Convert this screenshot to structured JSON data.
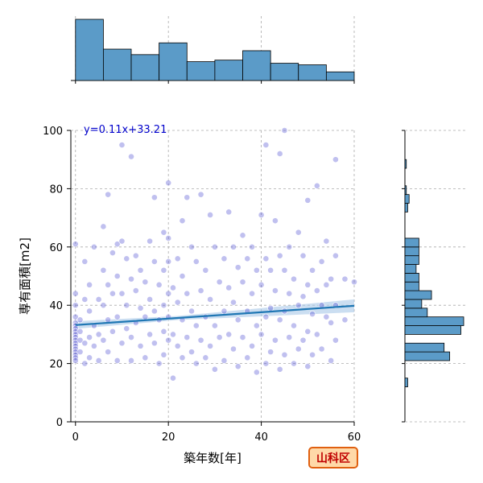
{
  "chart_data": {
    "type": "scatter",
    "title": "",
    "xlabel": "築年数[年]",
    "ylabel": "専有面積[m2]",
    "xlim": [
      -1,
      60
    ],
    "ylim": [
      0,
      100
    ],
    "x_ticks": [
      0,
      20,
      40,
      60
    ],
    "y_ticks": [
      0,
      20,
      40,
      60,
      80,
      100
    ],
    "grid": true,
    "equation": "y=0.11x+33.21",
    "regression": {
      "slope": 0.11,
      "intercept": 33.21
    },
    "region_label": "山科区",
    "colors": {
      "point": "#4a4ad0",
      "line": "#1f77b4",
      "band": "#a8c8e8",
      "bar": "#5b9bc8",
      "badge_fill": "#ffd9a8",
      "badge_border": "#e06010"
    },
    "points": [
      [
        0,
        34
      ],
      [
        0,
        33
      ],
      [
        0,
        32
      ],
      [
        0,
        31
      ],
      [
        0,
        30
      ],
      [
        0,
        29
      ],
      [
        0,
        28
      ],
      [
        0,
        27
      ],
      [
        0,
        26
      ],
      [
        0,
        25
      ],
      [
        0,
        24
      ],
      [
        0,
        23
      ],
      [
        0,
        22
      ],
      [
        0,
        21
      ],
      [
        0,
        44
      ],
      [
        0,
        61
      ],
      [
        0,
        36
      ],
      [
        0,
        40
      ],
      [
        1,
        31
      ],
      [
        1,
        28
      ],
      [
        1,
        24
      ],
      [
        1,
        35
      ],
      [
        2,
        55
      ],
      [
        2,
        42
      ],
      [
        2,
        27
      ],
      [
        2,
        20
      ],
      [
        3,
        47
      ],
      [
        3,
        38
      ],
      [
        3,
        29
      ],
      [
        3,
        22
      ],
      [
        4,
        60
      ],
      [
        4,
        33
      ],
      [
        4,
        26
      ],
      [
        5,
        42
      ],
      [
        5,
        30
      ],
      [
        5,
        21
      ],
      [
        6,
        67
      ],
      [
        6,
        52
      ],
      [
        6,
        40
      ],
      [
        6,
        28
      ],
      [
        7,
        78
      ],
      [
        7,
        47
      ],
      [
        7,
        35
      ],
      [
        7,
        24
      ],
      [
        8,
        58
      ],
      [
        8,
        44
      ],
      [
        8,
        31
      ],
      [
        9,
        61
      ],
      [
        9,
        50
      ],
      [
        9,
        36
      ],
      [
        9,
        21
      ],
      [
        10,
        95
      ],
      [
        10,
        62
      ],
      [
        10,
        44
      ],
      [
        10,
        27
      ],
      [
        11,
        56
      ],
      [
        11,
        40
      ],
      [
        11,
        32
      ],
      [
        12,
        91
      ],
      [
        12,
        49
      ],
      [
        12,
        29
      ],
      [
        12,
        21
      ],
      [
        13,
        57
      ],
      [
        13,
        45
      ],
      [
        13,
        34
      ],
      [
        14,
        52
      ],
      [
        14,
        39
      ],
      [
        14,
        26
      ],
      [
        15,
        48
      ],
      [
        15,
        36
      ],
      [
        15,
        22
      ],
      [
        16,
        62
      ],
      [
        16,
        42
      ],
      [
        16,
        30
      ],
      [
        17,
        77
      ],
      [
        17,
        55
      ],
      [
        17,
        38
      ],
      [
        17,
        27
      ],
      [
        18,
        47
      ],
      [
        18,
        35
      ],
      [
        18,
        20
      ],
      [
        19,
        65
      ],
      [
        19,
        52
      ],
      [
        19,
        40
      ],
      [
        19,
        31
      ],
      [
        19,
        23
      ],
      [
        20,
        82
      ],
      [
        20,
        63
      ],
      [
        20,
        55
      ],
      [
        20,
        44
      ],
      [
        20,
        36
      ],
      [
        20,
        28
      ],
      [
        21,
        46
      ],
      [
        21,
        30
      ],
      [
        21,
        15
      ],
      [
        22,
        56
      ],
      [
        22,
        41
      ],
      [
        22,
        26
      ],
      [
        23,
        69
      ],
      [
        23,
        50
      ],
      [
        23,
        35
      ],
      [
        23,
        22
      ],
      [
        24,
        77
      ],
      [
        24,
        44
      ],
      [
        24,
        29
      ],
      [
        25,
        60
      ],
      [
        25,
        38
      ],
      [
        25,
        24
      ],
      [
        26,
        55
      ],
      [
        26,
        33
      ],
      [
        26,
        20
      ],
      [
        27,
        78
      ],
      [
        27,
        45
      ],
      [
        27,
        28
      ],
      [
        28,
        52
      ],
      [
        28,
        36
      ],
      [
        28,
        22
      ],
      [
        29,
        71
      ],
      [
        29,
        42
      ],
      [
        29,
        26
      ],
      [
        30,
        60
      ],
      [
        30,
        33
      ],
      [
        30,
        18
      ],
      [
        31,
        48
      ],
      [
        31,
        29
      ],
      [
        32,
        56
      ],
      [
        32,
        38
      ],
      [
        32,
        21
      ],
      [
        33,
        72
      ],
      [
        33,
        46
      ],
      [
        33,
        30
      ],
      [
        34,
        60
      ],
      [
        34,
        41
      ],
      [
        34,
        25
      ],
      [
        35,
        53
      ],
      [
        35,
        35
      ],
      [
        35,
        19
      ],
      [
        36,
        64
      ],
      [
        36,
        48
      ],
      [
        36,
        29
      ],
      [
        37,
        56
      ],
      [
        37,
        38
      ],
      [
        37,
        22
      ],
      [
        38,
        60
      ],
      [
        38,
        44
      ],
      [
        38,
        26
      ],
      [
        39,
        52
      ],
      [
        39,
        33
      ],
      [
        39,
        17
      ],
      [
        40,
        71
      ],
      [
        40,
        47
      ],
      [
        40,
        30
      ],
      [
        41,
        95
      ],
      [
        41,
        56
      ],
      [
        41,
        36
      ],
      [
        41,
        20
      ],
      [
        42,
        52
      ],
      [
        42,
        39
      ],
      [
        42,
        24
      ],
      [
        43,
        69
      ],
      [
        43,
        45
      ],
      [
        43,
        28
      ],
      [
        44,
        92
      ],
      [
        44,
        57
      ],
      [
        44,
        35
      ],
      [
        44,
        18
      ],
      [
        45,
        100
      ],
      [
        45,
        52
      ],
      [
        45,
        38
      ],
      [
        45,
        23
      ],
      [
        46,
        60
      ],
      [
        46,
        44
      ],
      [
        46,
        29
      ],
      [
        47,
        49
      ],
      [
        47,
        33
      ],
      [
        47,
        20
      ],
      [
        48,
        65
      ],
      [
        48,
        40
      ],
      [
        48,
        25
      ],
      [
        49,
        57
      ],
      [
        49,
        43
      ],
      [
        49,
        28
      ],
      [
        50,
        76
      ],
      [
        50,
        47
      ],
      [
        50,
        31
      ],
      [
        50,
        19
      ],
      [
        51,
        52
      ],
      [
        51,
        37
      ],
      [
        51,
        23
      ],
      [
        52,
        81
      ],
      [
        52,
        45
      ],
      [
        52,
        30
      ],
      [
        53,
        55
      ],
      [
        53,
        40
      ],
      [
        53,
        25
      ],
      [
        54,
        62
      ],
      [
        54,
        47
      ],
      [
        54,
        36
      ],
      [
        55,
        49
      ],
      [
        55,
        34
      ],
      [
        55,
        21
      ],
      [
        56,
        90
      ],
      [
        56,
        57
      ],
      [
        56,
        40
      ],
      [
        56,
        28
      ],
      [
        58,
        49
      ],
      [
        58,
        35
      ],
      [
        60,
        48
      ]
    ],
    "hist_x": {
      "edges": [
        0,
        6,
        12,
        18,
        24,
        30,
        36,
        42,
        48,
        54,
        60
      ],
      "counts": [
        78,
        40,
        33,
        48,
        24,
        26,
        38,
        22,
        20,
        11
      ]
    },
    "hist_y": {
      "edges": [
        12,
        15,
        18,
        21,
        24,
        27,
        30,
        33,
        36,
        39,
        42,
        45,
        48,
        51,
        54,
        57,
        60,
        63,
        66,
        69,
        72,
        75,
        78,
        81,
        84,
        87,
        90,
        93,
        96,
        99,
        102
      ],
      "counts": [
        2,
        0,
        0,
        32,
        28,
        0,
        40,
        42,
        16,
        12,
        19,
        10,
        10,
        8,
        10,
        10,
        10,
        0,
        0,
        0,
        2,
        3,
        1,
        0,
        0,
        1,
        0,
        0,
        0,
        0
      ]
    }
  }
}
